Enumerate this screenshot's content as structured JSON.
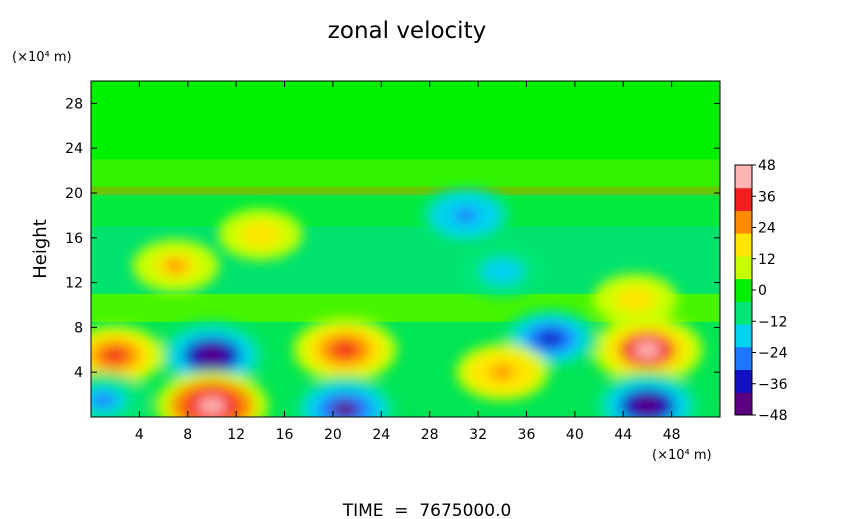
{
  "chart_data": {
    "type": "heatmap",
    "title": "zonal velocity",
    "ylabel": "Height",
    "x_unit_label": "(×10⁴ m)",
    "y_unit_label": "(×10⁴ m)",
    "footer": "TIME  =  7675000.0",
    "xlim": [
      0,
      52
    ],
    "ylim": [
      0,
      30
    ],
    "x_ticks": [
      4,
      8,
      12,
      16,
      20,
      24,
      28,
      32,
      36,
      40,
      44,
      48
    ],
    "y_ticks": [
      4,
      8,
      12,
      16,
      20,
      24,
      28
    ],
    "colorbar": {
      "range": [
        -48,
        48
      ],
      "ticks": [
        48,
        36,
        24,
        12,
        0,
        -12,
        -24,
        -36,
        -48
      ],
      "tick_labels": [
        "48",
        "36",
        "24",
        "12",
        "0",
        "−12",
        "−24",
        "−36",
        "−48"
      ],
      "colors": [
        "#5a0080",
        "#1010c0",
        "#1e78ff",
        "#00d2f0",
        "#00e678",
        "#00f000",
        "#c8ff00",
        "#ffe600",
        "#ff8c00",
        "#f01e1e",
        "#ffb4b4"
      ]
    },
    "features": [
      {
        "x": 10,
        "y": 5.5,
        "value": -48
      },
      {
        "x": 10,
        "y": 1,
        "value": 48
      },
      {
        "x": 21,
        "y": 6,
        "value": 40
      },
      {
        "x": 21,
        "y": 0.7,
        "value": -44
      },
      {
        "x": 46,
        "y": 6,
        "value": 46
      },
      {
        "x": 46,
        "y": 1,
        "value": -46
      },
      {
        "x": 38,
        "y": 7,
        "value": -34
      },
      {
        "x": 34,
        "y": 4,
        "value": 30
      },
      {
        "x": 2,
        "y": 5.5,
        "value": 34
      },
      {
        "x": 1,
        "y": 1.5,
        "value": -28
      },
      {
        "x": 7,
        "y": 13.5,
        "value": 24
      },
      {
        "x": 31,
        "y": 18,
        "value": -30
      },
      {
        "x": 34,
        "y": 13,
        "value": -22
      },
      {
        "x": 14,
        "y": 16.3,
        "value": 22
      },
      {
        "x": 45,
        "y": 10.5,
        "value": 22
      }
    ]
  }
}
